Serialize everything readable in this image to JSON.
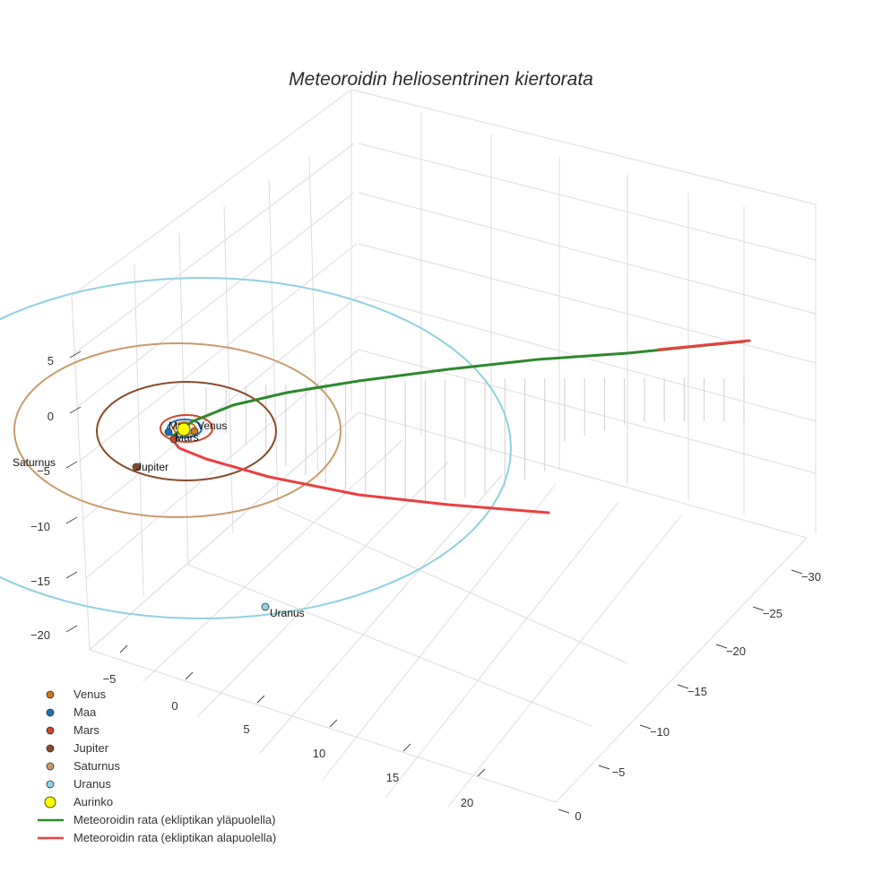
{
  "chart_data": {
    "type": "3d-line-scatter",
    "title": "Meteoroidin heliosentrinen kiertorata",
    "axes": {
      "x": {
        "ticks": [
          "−5",
          "0",
          "5",
          "10",
          "15",
          "20"
        ]
      },
      "y": {
        "ticks": [
          "−30",
          "−25",
          "−20",
          "−15",
          "−10",
          "−5",
          "0"
        ]
      },
      "z": {
        "ticks": [
          "5",
          "0",
          "−5",
          "−10",
          "−15",
          "−20"
        ]
      }
    },
    "planets": [
      {
        "name": "Venus",
        "color": "#c8781e",
        "label": "Venus"
      },
      {
        "name": "Maa",
        "color": "#1f6fb4",
        "label": "Maa"
      },
      {
        "name": "Mars",
        "color": "#d0452a",
        "label": "Mars"
      },
      {
        "name": "Jupiter",
        "color": "#8a4a2a",
        "label": "Jupiter"
      },
      {
        "name": "Saturnus",
        "color": "#c89a6a",
        "label": "Saturnus"
      },
      {
        "name": "Uranus",
        "color": "#8fd0e0",
        "label": "Uranus"
      }
    ],
    "sun": {
      "name": "Aurinko",
      "color": "#ffff00"
    },
    "series": [
      {
        "name": "Meteoroidin rata (ekliptikan yläpuolella)",
        "color": "#2a8a2a"
      },
      {
        "name": "Meteoroidin rata (ekliptikan alapuolella)",
        "color": "#e84040"
      }
    ],
    "legend": [
      {
        "label": "Venus",
        "kind": "marker",
        "color": "#c8781e"
      },
      {
        "label": "Maa",
        "kind": "marker",
        "color": "#1f6fb4"
      },
      {
        "label": "Mars",
        "kind": "marker",
        "color": "#d0452a"
      },
      {
        "label": "Jupiter",
        "kind": "marker",
        "color": "#8a4a2a"
      },
      {
        "label": "Saturnus",
        "kind": "marker",
        "color": "#c89a6a"
      },
      {
        "label": "Uranus",
        "kind": "marker",
        "color": "#8fd0e0"
      },
      {
        "label": "Aurinko",
        "kind": "sun",
        "color": "#ffff00"
      },
      {
        "label": "Meteoroidin rata (ekliptikan yläpuolella)",
        "kind": "line",
        "color": "#2a8a2a"
      },
      {
        "label": "Meteoroidin rata (ekliptikan alapuolella)",
        "kind": "line",
        "color": "#e84040"
      }
    ]
  }
}
